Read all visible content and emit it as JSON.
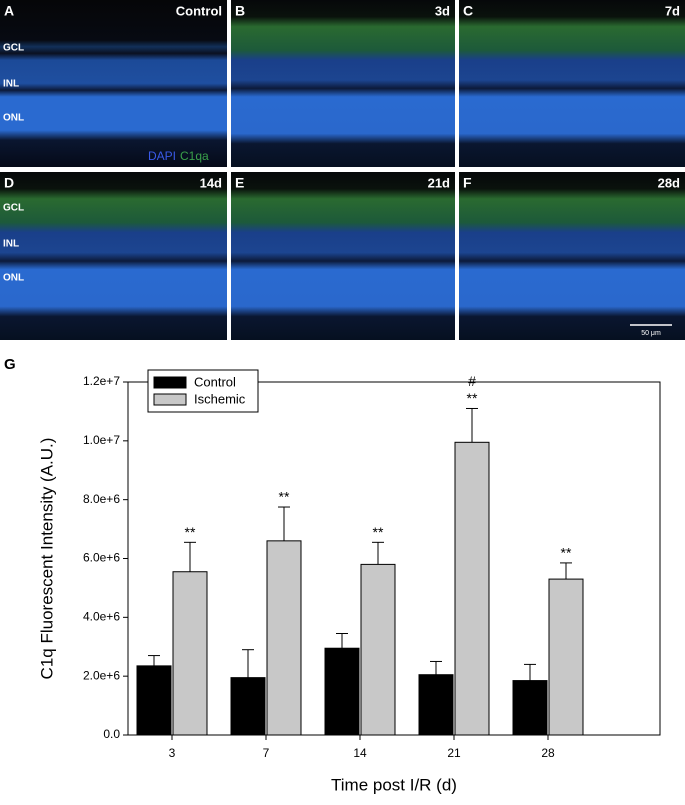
{
  "panels": [
    {
      "letter": "A",
      "label": "Control"
    },
    {
      "letter": "B",
      "label": "3d"
    },
    {
      "letter": "C",
      "label": "7d"
    },
    {
      "letter": "D",
      "label": "14d"
    },
    {
      "letter": "E",
      "label": "21d"
    },
    {
      "letter": "F",
      "label": "28d"
    }
  ],
  "layers_a": [
    "GCL",
    "INL",
    "ONL"
  ],
  "layers_d": [
    "GCL",
    "INL",
    "ONL"
  ],
  "stain": [
    "DAPI",
    "C1qa"
  ],
  "scale_bar": "50 μm",
  "chart_data": {
    "type": "bar",
    "panel_letter": "G",
    "y_label": "C1q Fluorescent Intensity (A.U.)",
    "x_label": "Time post I/R (d)",
    "categories": [
      "3",
      "7",
      "14",
      "21",
      "28"
    ],
    "series": [
      {
        "name": "Control",
        "color": "#000000",
        "values": [
          2350000,
          1950000,
          2950000,
          2050000,
          1850000
        ],
        "errors": [
          350000,
          950000,
          500000,
          450000,
          550000
        ]
      },
      {
        "name": "Ischemic",
        "color": "#c8c8c8",
        "values": [
          5550000,
          6600000,
          5800000,
          9950000,
          5300000
        ],
        "errors": [
          1000000,
          1150000,
          750000,
          1150000,
          550000
        ],
        "marks": [
          "**",
          "**",
          "**",
          "**",
          "**"
        ],
        "marks_above": [
          null,
          null,
          null,
          "#",
          null
        ]
      }
    ],
    "ylim": [
      0,
      12000000
    ],
    "yticks": [
      {
        "value": 0,
        "label": "0.0"
      },
      {
        "value": 2000000,
        "label": "2.0e+6"
      },
      {
        "value": 4000000,
        "label": "4.0e+6"
      },
      {
        "value": 6000000,
        "label": "6.0e+6"
      },
      {
        "value": 8000000,
        "label": "8.0e+6"
      },
      {
        "value": 10000000,
        "label": "1.0e+7"
      },
      {
        "value": 12000000,
        "label": "1.2e+7"
      }
    ],
    "legend": "upper-left",
    "grid": false
  }
}
